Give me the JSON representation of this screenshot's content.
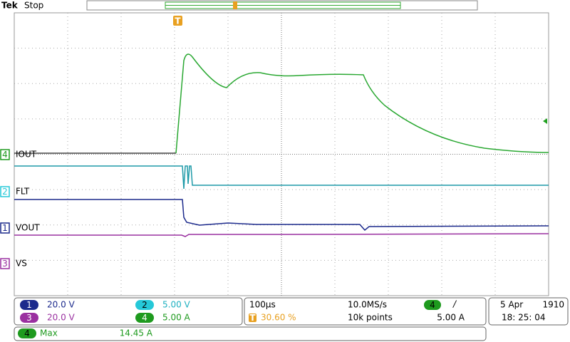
{
  "header": {
    "brand": "Tek",
    "status": "Stop"
  },
  "trigger_marker": "T",
  "channels": [
    {
      "number": "4",
      "label": "IOUT"
    },
    {
      "number": "2",
      "label": "FLT"
    },
    {
      "number": "1",
      "label": "VOUT"
    },
    {
      "number": "3",
      "label": "VS"
    }
  ],
  "scales": [
    {
      "number": "1",
      "value": "20.0 V"
    },
    {
      "number": "2",
      "value": "5.00 V"
    },
    {
      "number": "3",
      "value": "20.0 V"
    },
    {
      "number": "4",
      "value": "5.00 A"
    }
  ],
  "timebase": {
    "horizontal": "100µs",
    "sample_rate": "10.0MS/s",
    "trigger_position": "30.60 %",
    "record_length": "10k points"
  },
  "trigger": {
    "source": "4",
    "slope": "/",
    "level": "5.00 A"
  },
  "clock": {
    "date": "5 Apr",
    "year": "1910",
    "time": "18: 25: 04"
  },
  "measurement": {
    "source": "4",
    "name": "Max",
    "value": "14.45 A"
  }
}
